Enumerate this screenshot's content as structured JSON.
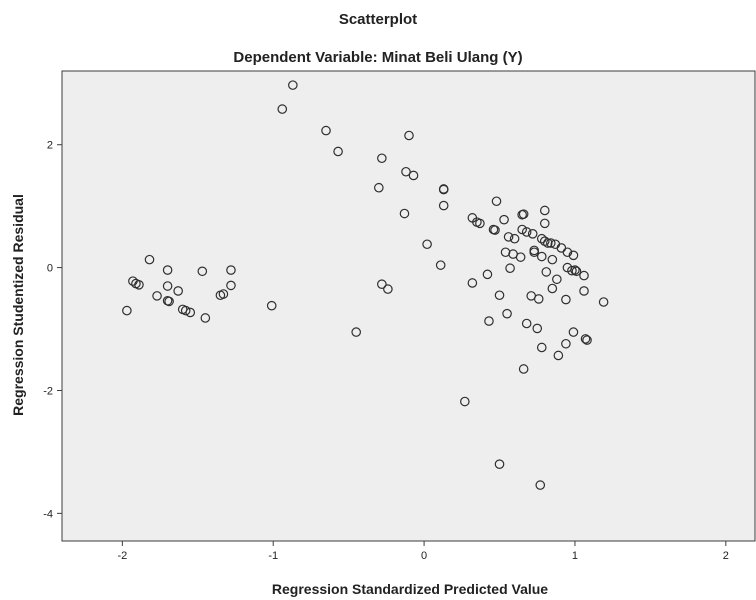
{
  "chart_data": {
    "type": "scatter",
    "title": "Scatterplot",
    "subtitle": "Dependent Variable: Minat Beli Ulang (Y)",
    "xlabel": "Regression Standardized Predicted Value",
    "ylabel": "Regression Studentized Residual",
    "xlim": [
      -2.4,
      2.2
    ],
    "ylim": [
      -4.45,
      3.2
    ],
    "xticks": [
      -2,
      -1,
      0,
      1,
      2
    ],
    "yticks": [
      -4,
      -2,
      0,
      2
    ],
    "grid": false,
    "points": [
      {
        "x": -1.97,
        "y": -0.7
      },
      {
        "x": -1.93,
        "y": -0.22
      },
      {
        "x": -1.91,
        "y": -0.26
      },
      {
        "x": -1.89,
        "y": -0.28
      },
      {
        "x": -1.82,
        "y": 0.13
      },
      {
        "x": -1.77,
        "y": -0.46
      },
      {
        "x": -1.7,
        "y": -0.04
      },
      {
        "x": -1.7,
        "y": -0.3
      },
      {
        "x": -1.7,
        "y": -0.54
      },
      {
        "x": -1.69,
        "y": -0.55
      },
      {
        "x": -1.63,
        "y": -0.38
      },
      {
        "x": -1.6,
        "y": -0.68
      },
      {
        "x": -1.58,
        "y": -0.7
      },
      {
        "x": -1.55,
        "y": -0.73
      },
      {
        "x": -1.47,
        "y": -0.06
      },
      {
        "x": -1.45,
        "y": -0.82
      },
      {
        "x": -1.35,
        "y": -0.45
      },
      {
        "x": -1.33,
        "y": -0.43
      },
      {
        "x": -1.28,
        "y": -0.04
      },
      {
        "x": -1.28,
        "y": -0.29
      },
      {
        "x": -1.01,
        "y": -0.62
      },
      {
        "x": -0.94,
        "y": 2.58
      },
      {
        "x": -0.87,
        "y": 2.97
      },
      {
        "x": -0.65,
        "y": 2.23
      },
      {
        "x": -0.57,
        "y": 1.89
      },
      {
        "x": -0.45,
        "y": -1.05
      },
      {
        "x": -0.3,
        "y": 1.3
      },
      {
        "x": -0.28,
        "y": 1.78
      },
      {
        "x": -0.28,
        "y": -0.27
      },
      {
        "x": -0.24,
        "y": -0.35
      },
      {
        "x": -0.13,
        "y": 0.88
      },
      {
        "x": -0.12,
        "y": 1.56
      },
      {
        "x": -0.1,
        "y": 2.15
      },
      {
        "x": -0.07,
        "y": 1.5
      },
      {
        "x": 0.02,
        "y": 0.38
      },
      {
        "x": 0.11,
        "y": 0.04
      },
      {
        "x": 0.13,
        "y": 1.27
      },
      {
        "x": 0.13,
        "y": 1.28
      },
      {
        "x": 0.13,
        "y": 1.01
      },
      {
        "x": 0.27,
        "y": -2.18
      },
      {
        "x": 0.32,
        "y": 0.81
      },
      {
        "x": 0.32,
        "y": -0.25
      },
      {
        "x": 0.35,
        "y": 0.74
      },
      {
        "x": 0.37,
        "y": 0.72
      },
      {
        "x": 0.42,
        "y": -0.11
      },
      {
        "x": 0.43,
        "y": -0.87
      },
      {
        "x": 0.46,
        "y": 0.62
      },
      {
        "x": 0.47,
        "y": 0.61
      },
      {
        "x": 0.48,
        "y": 1.08
      },
      {
        "x": 0.5,
        "y": -0.45
      },
      {
        "x": 0.5,
        "y": -3.2
      },
      {
        "x": 0.53,
        "y": 0.78
      },
      {
        "x": 0.54,
        "y": 0.25
      },
      {
        "x": 0.55,
        "y": -0.75
      },
      {
        "x": 0.56,
        "y": 0.5
      },
      {
        "x": 0.57,
        "y": -0.01
      },
      {
        "x": 0.59,
        "y": 0.22
      },
      {
        "x": 0.6,
        "y": 0.47
      },
      {
        "x": 0.64,
        "y": 0.17
      },
      {
        "x": 0.65,
        "y": 0.62
      },
      {
        "x": 0.65,
        "y": 0.86
      },
      {
        "x": 0.66,
        "y": 0.87
      },
      {
        "x": 0.66,
        "y": -1.65
      },
      {
        "x": 0.68,
        "y": 0.58
      },
      {
        "x": 0.68,
        "y": -0.91
      },
      {
        "x": 0.71,
        "y": -0.46
      },
      {
        "x": 0.72,
        "y": 0.55
      },
      {
        "x": 0.73,
        "y": 0.28
      },
      {
        "x": 0.73,
        "y": 0.25
      },
      {
        "x": 0.75,
        "y": -0.99
      },
      {
        "x": 0.76,
        "y": -0.51
      },
      {
        "x": 0.77,
        "y": -3.54
      },
      {
        "x": 0.78,
        "y": 0.47
      },
      {
        "x": 0.78,
        "y": 0.18
      },
      {
        "x": 0.78,
        "y": -1.3
      },
      {
        "x": 0.8,
        "y": 0.93
      },
      {
        "x": 0.8,
        "y": 0.72
      },
      {
        "x": 0.8,
        "y": 0.43
      },
      {
        "x": 0.81,
        "y": -0.07
      },
      {
        "x": 0.82,
        "y": 0.4
      },
      {
        "x": 0.84,
        "y": 0.4
      },
      {
        "x": 0.85,
        "y": 0.13
      },
      {
        "x": 0.85,
        "y": -0.34
      },
      {
        "x": 0.87,
        "y": 0.38
      },
      {
        "x": 0.88,
        "y": -0.19
      },
      {
        "x": 0.89,
        "y": -1.43
      },
      {
        "x": 0.91,
        "y": 0.32
      },
      {
        "x": 0.94,
        "y": -0.52
      },
      {
        "x": 0.94,
        "y": -1.24
      },
      {
        "x": 0.95,
        "y": 0.25
      },
      {
        "x": 0.95,
        "y": 0.0
      },
      {
        "x": 0.98,
        "y": -0.05
      },
      {
        "x": 0.99,
        "y": -1.05
      },
      {
        "x": 0.99,
        "y": 0.2
      },
      {
        "x": 1.0,
        "y": -0.04
      },
      {
        "x": 1.01,
        "y": -0.06
      },
      {
        "x": 1.06,
        "y": -0.13
      },
      {
        "x": 1.06,
        "y": -0.38
      },
      {
        "x": 1.07,
        "y": -1.16
      },
      {
        "x": 1.08,
        "y": -1.18
      },
      {
        "x": 1.19,
        "y": -0.56
      }
    ]
  }
}
